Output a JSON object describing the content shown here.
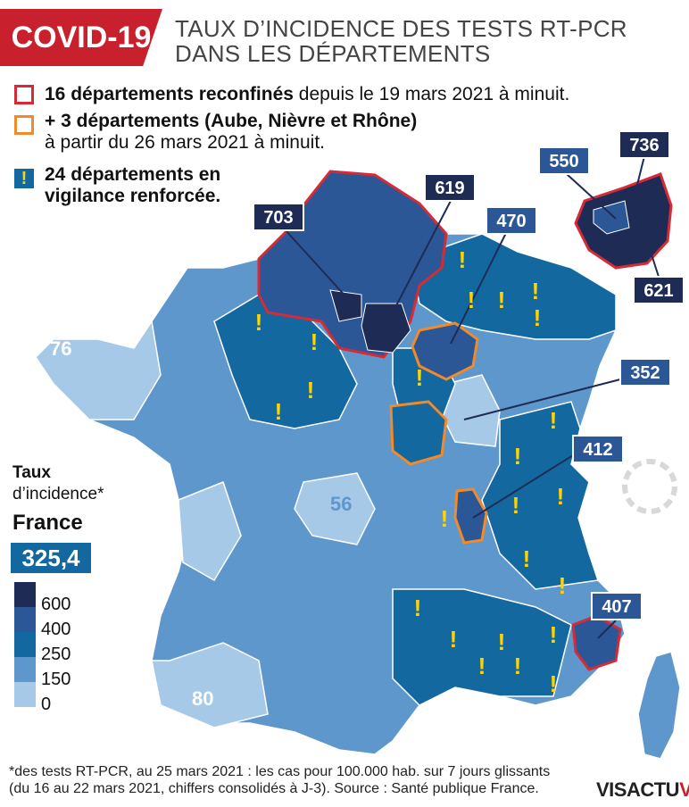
{
  "header": {
    "badge": "COVID-19",
    "title_line1": "TAUX D’INCIDENCE DES TESTS RT-PCR",
    "title_line2": "DANS LES DÉPARTEMENTS"
  },
  "legend": {
    "red": {
      "bold": "16 départements reconfinés",
      "rest": " depuis le 19 mars 2021 à minuit."
    },
    "orange": {
      "bold": "+ 3 départements (Aube, Nièvre et Rhône)",
      "line2": "à partir du 26 mars 2021 à minuit."
    },
    "blue": {
      "symbol": "!",
      "line1": "24 départements en",
      "line2": "vigilance renforcée."
    }
  },
  "colors": {
    "c600": "#1e2c55",
    "c400": "#2b5797",
    "c250": "#12689f",
    "c150": "#5e97cc",
    "c0": "#a7c9e8",
    "red_outline": "#d62b36",
    "orange_outline": "#f08a2a",
    "alert": "#ffd400"
  },
  "incidence": {
    "label_line1": "Taux",
    "label_line2": "d’incidence*",
    "france_label": "France",
    "france_value": "325,4"
  },
  "scale": [
    {
      "label": "600",
      "color": "#1e2c55"
    },
    {
      "label": "400",
      "color": "#2b5797"
    },
    {
      "label": "250",
      "color": "#12689f"
    },
    {
      "label": "150",
      "color": "#5e97cc"
    },
    {
      "label": "0",
      "color": "#a7c9e8"
    }
  ],
  "callouts": [
    {
      "value": "703"
    },
    {
      "value": "619"
    },
    {
      "value": "470"
    },
    {
      "value": "550"
    },
    {
      "value": "736"
    },
    {
      "value": "621"
    },
    {
      "value": "352"
    },
    {
      "value": "412"
    },
    {
      "value": "407"
    }
  ],
  "map_labels": {
    "a": "76",
    "b": "56",
    "c": "80"
  },
  "footer": {
    "line1": "*des tests RT-PCR, au 25 mars 2021 : les cas pour 100.000 hab. sur 7 jours glissants",
    "line2": "(du 16 au 22 mars 2021, chiffers consolidés à J-3). Source : Santé publique France."
  },
  "logo": {
    "part1": "VIS",
    "part2": "ACTU",
    "mark": "V"
  }
}
